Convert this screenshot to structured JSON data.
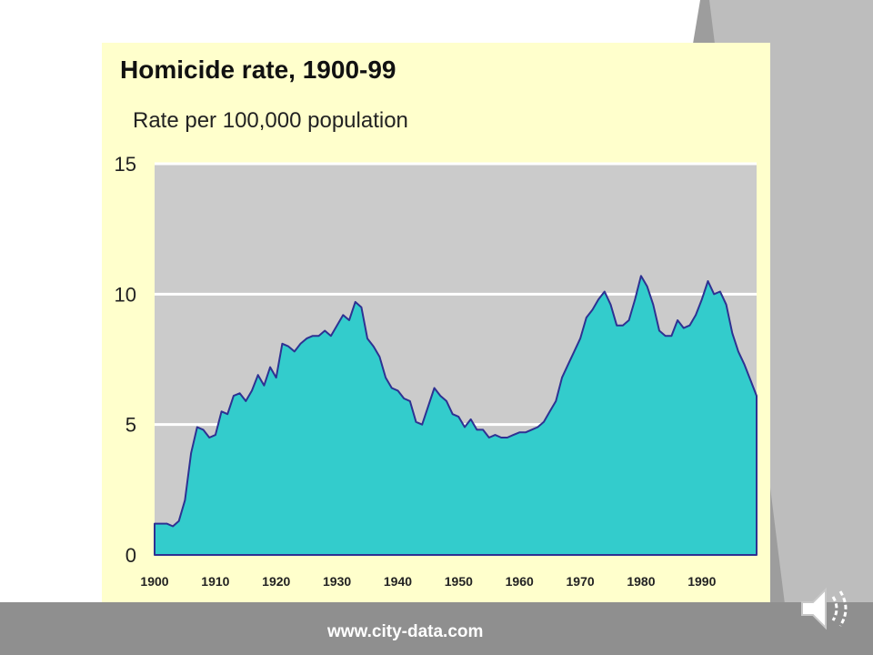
{
  "slide": {
    "source_text": "www.city-data.com"
  },
  "chart_data": {
    "type": "area",
    "title": "Homicide rate, 1900-99",
    "ylabel": "Rate per 100,000 population",
    "xlabel": "",
    "ylim": [
      0,
      15
    ],
    "xlim": [
      1900,
      1999
    ],
    "yticks": [
      0,
      5,
      10,
      15
    ],
    "xticks": [
      1900,
      1910,
      1920,
      1930,
      1940,
      1950,
      1960,
      1970,
      1980,
      1990
    ],
    "grid": true,
    "series": [
      {
        "name": "Homicide rate",
        "x": [
          1900,
          1901,
          1902,
          1903,
          1904,
          1905,
          1906,
          1907,
          1908,
          1909,
          1910,
          1911,
          1912,
          1913,
          1914,
          1915,
          1916,
          1917,
          1918,
          1919,
          1920,
          1921,
          1922,
          1923,
          1924,
          1925,
          1926,
          1927,
          1928,
          1929,
          1930,
          1931,
          1932,
          1933,
          1934,
          1935,
          1936,
          1937,
          1938,
          1939,
          1940,
          1941,
          1942,
          1943,
          1944,
          1945,
          1946,
          1947,
          1948,
          1949,
          1950,
          1951,
          1952,
          1953,
          1954,
          1955,
          1956,
          1957,
          1958,
          1959,
          1960,
          1961,
          1962,
          1963,
          1964,
          1965,
          1966,
          1967,
          1968,
          1969,
          1970,
          1971,
          1972,
          1973,
          1974,
          1975,
          1976,
          1977,
          1978,
          1979,
          1980,
          1981,
          1982,
          1983,
          1984,
          1985,
          1986,
          1987,
          1988,
          1989,
          1990,
          1991,
          1992,
          1993,
          1994,
          1995,
          1996,
          1997,
          1998,
          1999
        ],
        "values": [
          1.2,
          1.2,
          1.2,
          1.1,
          1.3,
          2.1,
          3.9,
          4.9,
          4.8,
          4.5,
          4.6,
          5.5,
          5.4,
          6.1,
          6.2,
          5.9,
          6.3,
          6.9,
          6.5,
          7.2,
          6.8,
          8.1,
          8.0,
          7.8,
          8.1,
          8.3,
          8.4,
          8.4,
          8.6,
          8.4,
          8.8,
          9.2,
          9.0,
          9.7,
          9.5,
          8.3,
          8.0,
          7.6,
          6.8,
          6.4,
          6.3,
          6.0,
          5.9,
          5.1,
          5.0,
          5.7,
          6.4,
          6.1,
          5.9,
          5.4,
          5.3,
          4.9,
          5.2,
          4.8,
          4.8,
          4.5,
          4.6,
          4.5,
          4.5,
          4.6,
          4.7,
          4.7,
          4.8,
          4.9,
          5.1,
          5.5,
          5.9,
          6.8,
          7.3,
          7.8,
          8.3,
          9.1,
          9.4,
          9.8,
          10.1,
          9.6,
          8.8,
          8.8,
          9.0,
          9.8,
          10.7,
          10.3,
          9.6,
          8.6,
          8.4,
          8.4,
          9.0,
          8.7,
          8.8,
          9.2,
          9.8,
          10.5,
          10.0,
          10.1,
          9.6,
          8.5,
          7.8,
          7.3,
          6.7,
          6.1
        ]
      }
    ],
    "colors": {
      "fill": "#33cccc",
      "line": "#2e3192",
      "plot_background": "#cbcbcb",
      "panel_background": "#ffffcc",
      "gridline": "#ffffff"
    }
  }
}
